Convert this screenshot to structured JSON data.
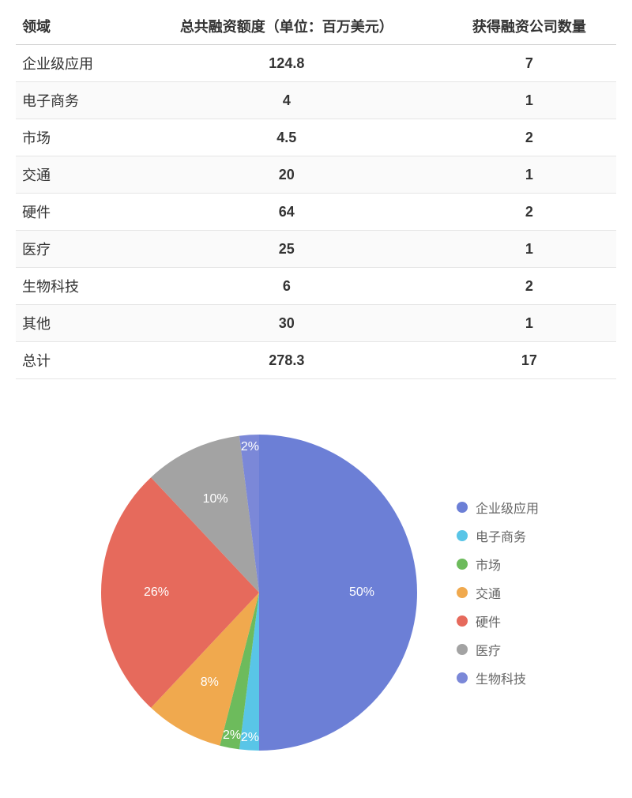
{
  "table": {
    "columns": [
      "领域",
      "总共融资额度（单位：百万美元）",
      "获得融资公司数量"
    ],
    "rows": [
      [
        "企业级应用",
        "124.8",
        "7"
      ],
      [
        "电子商务",
        "4",
        "1"
      ],
      [
        "市场",
        "4.5",
        "2"
      ],
      [
        "交通",
        "20",
        "1"
      ],
      [
        "硬件",
        "64",
        "2"
      ],
      [
        "医疗",
        "25",
        "1"
      ],
      [
        "生物科技",
        "6",
        "2"
      ],
      [
        "其他",
        "30",
        "1"
      ],
      [
        "总计",
        "278.3",
        "17"
      ]
    ],
    "header_fontsize": 18,
    "cell_fontsize": 18,
    "border_color": "#e5e5e5",
    "alt_row_bg": "#fafafa"
  },
  "pie": {
    "type": "pie",
    "slices": [
      {
        "label": "企业级应用",
        "pct": 50,
        "color": "#6c7fd6",
        "label_text": "50%",
        "label_color": "#ffffff"
      },
      {
        "label": "电子商务",
        "pct": 2,
        "color": "#59c5e7",
        "label_text": "2%",
        "label_color": "#ffffff"
      },
      {
        "label": "市场",
        "pct": 2,
        "color": "#6dbb5c",
        "label_text": "2%",
        "label_color": "#ffffff"
      },
      {
        "label": "交通",
        "pct": 8,
        "color": "#f0a94e",
        "label_text": "8%",
        "label_color": "#ffffff"
      },
      {
        "label": "硬件",
        "pct": 26,
        "color": "#e66a5c",
        "label_text": "26%",
        "label_color": "#ffffff"
      },
      {
        "label": "医疗",
        "pct": 10,
        "color": "#a3a3a3",
        "label_text": "10%",
        "label_color": "#ffffff"
      },
      {
        "label": "生物科技",
        "pct": 2,
        "color": "#7b88d8",
        "label_text": "2%",
        "label_color": "#ffffff"
      }
    ],
    "start_angle_deg": -90,
    "direction": "clockwise",
    "radius": 200,
    "label_radius_ratio": 0.65,
    "background_color": "#ffffff",
    "legend_items": [
      "企业级应用",
      "电子商务",
      "市场",
      "交通",
      "硬件",
      "医疗",
      "生物科技"
    ],
    "legend_text_color": "#666666",
    "legend_fontsize": 16
  }
}
